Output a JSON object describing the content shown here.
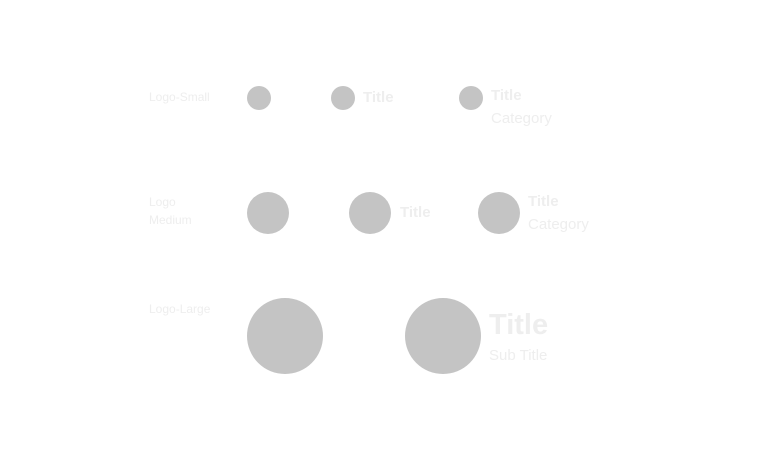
{
  "rows": {
    "small": {
      "label": "Logo-Small",
      "variant_b": {
        "title": "Title"
      },
      "variant_c": {
        "title": "Title",
        "category": "Category"
      }
    },
    "medium": {
      "label_line1": "Logo",
      "label_line2": "Medium",
      "variant_b": {
        "title": "Title"
      },
      "variant_c": {
        "title": "Title",
        "category": "Category"
      }
    },
    "large": {
      "label": "Logo-Large",
      "variant_b": {
        "title": "Title",
        "subtitle": "Sub Title"
      }
    }
  },
  "colors": {
    "logo_fill": "#c4c4c4",
    "text": "#eeeeee",
    "background": "#ffffff"
  }
}
